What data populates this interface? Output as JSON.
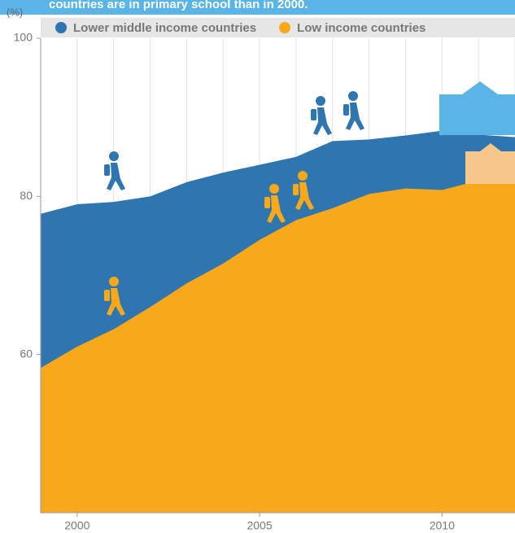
{
  "chart_data": {
    "type": "area",
    "title": "countries are in primary school than in 2000.",
    "y_label": "(%)",
    "x": [
      1999,
      2000,
      2001,
      2002,
      2003,
      2004,
      2005,
      2006,
      2007,
      2008,
      2009,
      2010,
      2011,
      2012
    ],
    "series": [
      {
        "name": "Lower middle income countries",
        "color": "#2f75b0",
        "values": [
          77.8,
          79,
          79.3,
          80,
          81.8,
          83,
          84,
          85,
          87,
          87.2,
          87.7,
          88.3,
          87.8,
          87.5
        ]
      },
      {
        "name": "Low income countries",
        "color": "#f7a81b",
        "values": [
          58.3,
          61,
          63.2,
          66,
          69,
          71.5,
          74.5,
          77,
          78.5,
          80.3,
          81,
          80.8,
          82,
          82
        ]
      }
    ],
    "xlim": [
      1999,
      2012
    ],
    "ylim": [
      40,
      100
    ],
    "xticks": [
      2000,
      2005,
      2010
    ],
    "yticks": [
      60,
      80,
      100
    ],
    "grid": true
  }
}
